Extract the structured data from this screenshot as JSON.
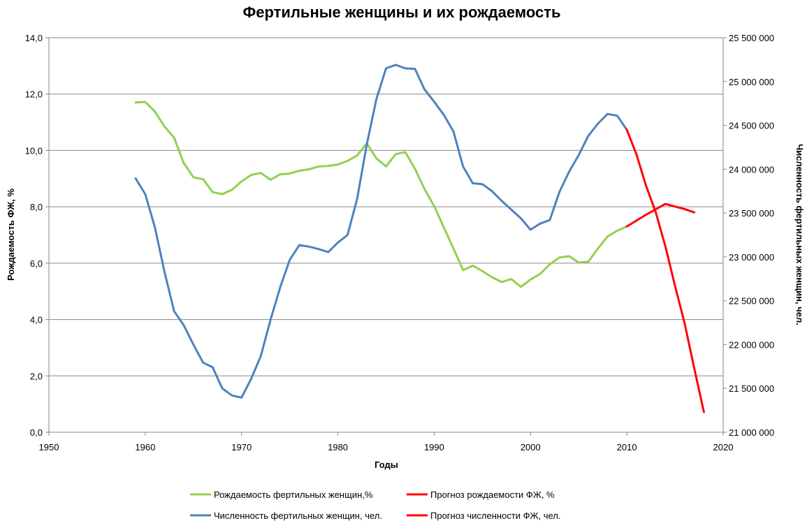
{
  "chart_data": {
    "type": "line",
    "title": "Фертильные женщины и их рождаемость",
    "xlabel": "Годы",
    "ylabel_left": "Рождаемость ФЖ, %",
    "ylabel_right": "Численность фертильных женщин, чел.",
    "xlim": [
      1950,
      2020
    ],
    "ylim_left": [
      0,
      14
    ],
    "ylim_right": [
      21000000,
      25500000
    ],
    "x_ticks": [
      "1950",
      "1960",
      "1970",
      "1980",
      "1990",
      "2000",
      "2010",
      "2020"
    ],
    "y_left_ticks": [
      "0,0",
      "2,0",
      "4,0",
      "6,0",
      "8,0",
      "10,0",
      "12,0",
      "14,0"
    ],
    "y_right_ticks": [
      "21 000 000",
      "21 500 000",
      "22 000 000",
      "22 500 000",
      "23 000 000",
      "23 500 000",
      "24 000 000",
      "24 500 000",
      "25 000 000",
      "25 500 000"
    ],
    "grid": true,
    "legend_position": "bottom",
    "series": [
      {
        "name": "Рождаемость фертильных женщин,%",
        "axis": "left",
        "color": "#92d050",
        "x": [
          1959,
          1960,
          1961,
          1962,
          1963,
          1964,
          1965,
          1966,
          1967,
          1968,
          1969,
          1970,
          1971,
          1972,
          1973,
          1974,
          1975,
          1976,
          1977,
          1978,
          1979,
          1980,
          1981,
          1982,
          1983,
          1984,
          1985,
          1986,
          1987,
          1988,
          1989,
          1990,
          1991,
          1992,
          1993,
          1994,
          1995,
          1996,
          1997,
          1998,
          1999,
          2000,
          2001,
          2002,
          2003,
          2004,
          2005,
          2006,
          2007,
          2008,
          2009,
          2010
        ],
        "values": [
          11.7,
          11.72,
          11.38,
          10.85,
          10.45,
          9.55,
          9.05,
          8.98,
          8.52,
          8.45,
          8.6,
          8.9,
          9.13,
          9.2,
          8.96,
          9.15,
          9.18,
          9.28,
          9.33,
          9.43,
          9.45,
          9.5,
          9.63,
          9.82,
          10.25,
          9.72,
          9.43,
          9.87,
          9.94,
          9.35,
          8.63,
          8.02,
          7.27,
          6.52,
          5.75,
          5.91,
          5.72,
          5.5,
          5.33,
          5.44,
          5.16,
          5.42,
          5.62,
          5.96,
          6.2,
          6.25,
          6.02,
          6.05,
          6.52,
          6.95,
          7.15,
          7.3
        ],
        "line_width": 3
      },
      {
        "name": "Численность фертильных женщин, чел.",
        "axis": "right",
        "color": "#4f81bd",
        "x": [
          1959,
          1960,
          1961,
          1962,
          1963,
          1964,
          1965,
          1966,
          1967,
          1968,
          1969,
          1970,
          1971,
          1972,
          1973,
          1974,
          1975,
          1976,
          1977,
          1978,
          1979,
          1980,
          1981,
          1982,
          1983,
          1984,
          1985,
          1986,
          1987,
          1988,
          1989,
          1990,
          1991,
          1992,
          1993,
          1994,
          1995,
          1996,
          1997,
          1998,
          1999,
          2000,
          2001,
          2002,
          2003,
          2004,
          2005,
          2006,
          2007,
          2008,
          2009,
          2010
        ],
        "values": [
          23895000,
          23715000,
          23340000,
          22830000,
          22380000,
          22220000,
          22000000,
          21795000,
          21740000,
          21500000,
          21420000,
          21395000,
          21610000,
          21870000,
          22280000,
          22650000,
          22965000,
          23134000,
          23117000,
          23089000,
          23054000,
          23164000,
          23250000,
          23660000,
          24280000,
          24800000,
          25150000,
          25190000,
          25150000,
          25145000,
          24910000,
          24770000,
          24620000,
          24430000,
          24030000,
          23840000,
          23830000,
          23750000,
          23640000,
          23540000,
          23440000,
          23310000,
          23380000,
          23420000,
          23740000,
          23970000,
          24160000,
          24380000,
          24520000,
          24630000,
          24610000,
          24450000
        ],
        "line_width": 3
      },
      {
        "name": "Прогноз рождаемости  ФЖ, %",
        "axis": "left",
        "color": "#ff0000",
        "x": [
          2010,
          2012,
          2014,
          2016,
          2017
        ],
        "values": [
          7.3,
          7.72,
          8.1,
          7.92,
          7.8
        ],
        "line_width": 3
      },
      {
        "name": "Прогноз численности ФЖ, чел.",
        "axis": "right",
        "color": "#ff0000",
        "x": [
          2010,
          2011,
          2012,
          2013,
          2014,
          2015,
          2016,
          2017,
          2018
        ],
        "values": [
          24450000,
          24170000,
          23810000,
          23510000,
          23120000,
          22670000,
          22240000,
          21730000,
          21230000
        ],
        "line_width": 3
      }
    ]
  }
}
